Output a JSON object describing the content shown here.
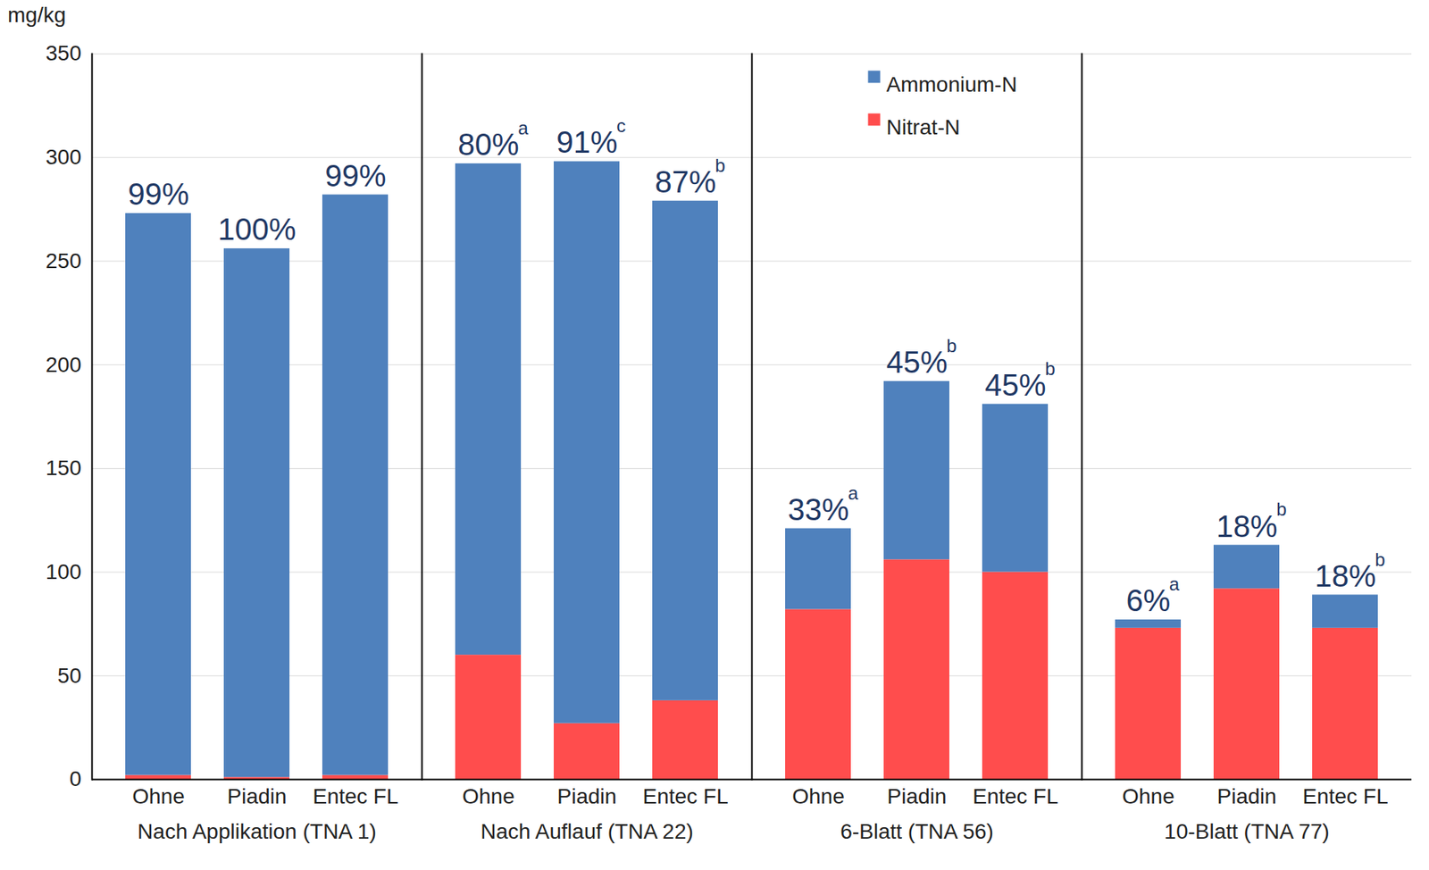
{
  "chart_data": {
    "type": "bar",
    "stacked": true,
    "grid": true,
    "legend": "top-left",
    "y_label": "mg/kg",
    "ylim": [
      0,
      350
    ],
    "yticks": [
      0,
      50,
      100,
      150,
      200,
      250,
      300,
      350
    ],
    "series": [
      {
        "name": "Nitrat-N",
        "color": "#ff4d4d"
      },
      {
        "name": "Ammonium-N",
        "color": "#4f81bd"
      }
    ],
    "panels": [
      {
        "title": "Nach Applikation (TNA 1)",
        "categories": [
          "Ohne",
          "Piadin",
          "Entec FL"
        ],
        "values": [
          [
            2,
            1,
            2
          ],
          [
            271,
            255,
            280
          ]
        ],
        "labels": [
          "99%",
          "100%",
          "99%"
        ],
        "label_letters": [
          null,
          null,
          null
        ]
      },
      {
        "title": "Nach Auflauf (TNA 22)",
        "categories": [
          "Ohne",
          "Piadin",
          "Entec FL"
        ],
        "values": [
          [
            60,
            27,
            38
          ],
          [
            237,
            271,
            241
          ]
        ],
        "labels": [
          "80%",
          "91%",
          "87%"
        ],
        "label_letters": [
          "a",
          "c",
          "b"
        ]
      },
      {
        "title": "6-Blatt (TNA 56)",
        "categories": [
          "Ohne",
          "Piadin",
          "Entec FL"
        ],
        "values": [
          [
            82,
            106,
            100
          ],
          [
            39,
            86,
            81
          ]
        ],
        "labels": [
          "33%",
          "45%",
          "45%"
        ],
        "label_letters": [
          "a",
          "b",
          "b"
        ]
      },
      {
        "title": "10-Blatt (TNA 77)",
        "categories": [
          "Ohne",
          "Piadin",
          "Entec FL"
        ],
        "values": [
          [
            73,
            92,
            73
          ],
          [
            4,
            21,
            16
          ]
        ],
        "labels": [
          "6%",
          "18%",
          "18%"
        ],
        "label_letters": [
          "a",
          "b",
          "b"
        ]
      }
    ]
  }
}
